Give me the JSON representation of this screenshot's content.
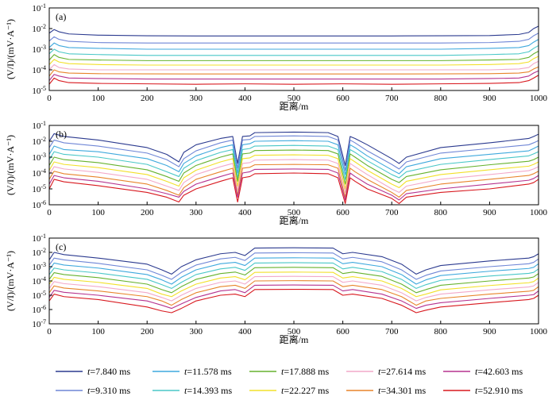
{
  "legend": {
    "entries": [
      "t=7.840 ms",
      "t=9.310 ms",
      "t=11.578 ms",
      "t=14.393 ms",
      "t=17.888 ms",
      "t=22.227 ms",
      "t=27.614 ms",
      "t=34.301 ms",
      "t=42.603 ms",
      "t=52.910 ms"
    ],
    "colors": [
      "#2b3a8f",
      "#6f86d6",
      "#3fa9dd",
      "#49c7c7",
      "#66b22e",
      "#f2e02a",
      "#f2a9c9",
      "#e8842a",
      "#b5338f",
      "#d8181e"
    ]
  },
  "chart_data": [
    {
      "type": "line",
      "panel_label": "(a)",
      "xlabel": "距离/m",
      "ylabel": "(V/I)/(mV·A⁻¹)",
      "xlim": [
        0,
        1000
      ],
      "ylim_exp": [
        -5,
        -1
      ],
      "yscale": "log",
      "x_ticks": [
        "0",
        "100",
        "200",
        "300",
        "400",
        "500",
        "600",
        "700",
        "800",
        "900",
        "1000"
      ],
      "y_ticks": [
        "10-5",
        "10-4",
        "10-3",
        "10-2",
        "10-1"
      ],
      "x": [
        0,
        10,
        20,
        40,
        100,
        200,
        300,
        400,
        500,
        600,
        700,
        800,
        900,
        960,
        980,
        990,
        1000
      ],
      "series": [
        {
          "values": [
            0.006,
            0.009,
            0.007,
            0.0055,
            0.0048,
            0.0045,
            0.0044,
            0.0044,
            0.0044,
            0.0044,
            0.0044,
            0.0045,
            0.0046,
            0.0052,
            0.0065,
            0.01,
            0.013
          ]
        },
        {
          "values": [
            0.0025,
            0.004,
            0.003,
            0.0024,
            0.0021,
            0.002,
            0.002,
            0.002,
            0.002,
            0.002,
            0.002,
            0.002,
            0.0021,
            0.0024,
            0.003,
            0.0045,
            0.006
          ]
        },
        {
          "values": [
            0.0012,
            0.002,
            0.0015,
            0.0012,
            0.0011,
            0.001,
            0.001,
            0.001,
            0.001,
            0.001,
            0.001,
            0.001,
            0.0011,
            0.0012,
            0.0015,
            0.0022,
            0.003
          ]
        },
        {
          "values": [
            0.0006,
            0.001,
            0.00075,
            0.0006,
            0.00055,
            0.0005,
            0.0005,
            0.0005,
            0.0005,
            0.0005,
            0.0005,
            0.0005,
            0.00055,
            0.0006,
            0.00075,
            0.0011,
            0.0015
          ]
        },
        {
          "values": [
            0.0003,
            0.00055,
            0.0004,
            0.00032,
            0.0003,
            0.00028,
            0.00028,
            0.00028,
            0.00028,
            0.00028,
            0.00028,
            0.00028,
            0.0003,
            0.00032,
            0.0004,
            0.0006,
            0.0008
          ]
        },
        {
          "values": [
            0.00018,
            0.00032,
            0.00024,
            0.0002,
            0.00018,
            0.00017,
            0.00017,
            0.00017,
            0.00017,
            0.00017,
            0.00017,
            0.00017,
            0.00018,
            0.0002,
            0.00024,
            0.00035,
            0.00045
          ]
        },
        {
          "values": [
            0.0001,
            0.00018,
            0.00013,
            0.00011,
            0.0001,
            0.0001,
            0.0001,
            0.0001,
            0.0001,
            0.0001,
            0.0001,
            0.0001,
            0.0001,
            0.00011,
            0.00013,
            0.0002,
            0.00026
          ]
        },
        {
          "values": [
            5e-05,
            0.0001,
            8e-05,
            7e-05,
            6.5e-05,
            6.4e-05,
            6.3e-05,
            6.3e-05,
            6.3e-05,
            6.3e-05,
            6.3e-05,
            6.4e-05,
            6.5e-05,
            7e-05,
            8e-05,
            0.00011,
            0.00014
          ]
        },
        {
          "values": [
            3e-05,
            6e-05,
            5e-05,
            4e-05,
            3.8e-05,
            3.6e-05,
            3.6e-05,
            3.6e-05,
            3.6e-05,
            3.6e-05,
            3.6e-05,
            3.6e-05,
            3.8e-05,
            4e-05,
            5e-05,
            7e-05,
            9e-05
          ]
        },
        {
          "values": [
            2e-05,
            4e-05,
            3e-05,
            2.4e-05,
            2.2e-05,
            2.1e-05,
            2e-05,
            2.1e-05,
            2e-05,
            2.1e-05,
            2e-05,
            2.1e-05,
            2.2e-05,
            2.4e-05,
            3e-05,
            4e-05,
            5.5e-05
          ]
        }
      ]
    },
    {
      "type": "line",
      "panel_label": "(b)",
      "xlabel": "距离/m",
      "ylabel": "(V/I)/(mV·A⁻¹)",
      "xlim": [
        0,
        1000
      ],
      "ylim_exp": [
        -6,
        -1
      ],
      "yscale": "log",
      "x_ticks": [
        "0",
        "100",
        "200",
        "300",
        "400",
        "500",
        "600",
        "700",
        "800",
        "900",
        "1000"
      ],
      "y_ticks": [
        "10-6",
        "10-5",
        "10-4",
        "10-3",
        "10-2",
        "10-1"
      ],
      "x": [
        0,
        10,
        30,
        100,
        200,
        240,
        265,
        275,
        300,
        350,
        375,
        385,
        395,
        410,
        420,
        500,
        570,
        590,
        605,
        615,
        625,
        650,
        700,
        715,
        730,
        800,
        900,
        980,
        990,
        1000
      ],
      "series": [
        {
          "values": [
            0.01,
            0.03,
            0.02,
            0.012,
            0.004,
            0.0015,
            0.0005,
            0.002,
            0.006,
            0.015,
            0.02,
            0.0004,
            0.02,
            0.022,
            0.035,
            0.038,
            0.035,
            0.02,
            0.0003,
            0.02,
            0.015,
            0.006,
            0.0008,
            0.0004,
            0.001,
            0.004,
            0.008,
            0.015,
            0.02,
            0.028
          ]
        },
        {
          "values": [
            0.004,
            0.012,
            0.008,
            0.005,
            0.0018,
            0.0007,
            0.00025,
            0.0008,
            0.0025,
            0.008,
            0.012,
            0.0002,
            0.012,
            0.013,
            0.02,
            0.022,
            0.02,
            0.012,
            0.00015,
            0.012,
            0.008,
            0.0025,
            0.00035,
            0.00018,
            0.0005,
            0.0018,
            0.0035,
            0.006,
            0.008,
            0.011
          ]
        },
        {
          "values": [
            0.0015,
            0.005,
            0.003,
            0.0022,
            0.0008,
            0.0003,
            0.00012,
            0.0004,
            0.0012,
            0.004,
            0.006,
            0.0001,
            0.006,
            0.007,
            0.01,
            0.011,
            0.01,
            0.006,
            8e-05,
            0.006,
            0.004,
            0.0012,
            0.00016,
            9e-05,
            0.00025,
            0.0008,
            0.0015,
            0.0025,
            0.0035,
            0.005
          ]
        },
        {
          "values": [
            0.0007,
            0.0022,
            0.0015,
            0.001,
            0.00035,
            0.00012,
            6e-05,
            0.0002,
            0.0006,
            0.002,
            0.003,
            5e-05,
            0.003,
            0.0035,
            0.005,
            0.0055,
            0.005,
            0.003,
            4e-05,
            0.003,
            0.002,
            0.0006,
            8e-05,
            5e-05,
            0.00012,
            0.00035,
            0.0007,
            0.0012,
            0.0016,
            0.0022
          ]
        },
        {
          "values": [
            0.0003,
            0.001,
            0.0007,
            0.00045,
            0.00016,
            6e-05,
            3e-05,
            0.0001,
            0.0003,
            0.001,
            0.0016,
            3e-05,
            0.0016,
            0.0018,
            0.0026,
            0.0028,
            0.0026,
            0.0016,
            2e-05,
            0.0016,
            0.001,
            0.0003,
            4e-05,
            2.5e-05,
            6e-05,
            0.00016,
            0.00033,
            0.00055,
            0.0007,
            0.001
          ]
        },
        {
          "values": [
            0.00015,
            0.0005,
            0.00035,
            0.00022,
            8e-05,
            3e-05,
            1.5e-05,
            5e-05,
            0.00015,
            0.0005,
            0.0008,
            1.5e-05,
            0.0008,
            0.0009,
            0.0013,
            0.0014,
            0.0013,
            0.0008,
            1e-05,
            0.0008,
            0.0005,
            0.00015,
            2e-05,
            1.2e-05,
            3e-05,
            8e-05,
            0.00016,
            0.00027,
            0.00035,
            0.0005
          ]
        },
        {
          "values": [
            8e-05,
            0.00025,
            0.00018,
            0.00011,
            4e-05,
            1.5e-05,
            8e-06,
            2.5e-05,
            8e-05,
            0.00025,
            0.0004,
            8e-06,
            0.0004,
            0.00045,
            0.00065,
            0.0007,
            0.00065,
            0.0004,
            6e-06,
            0.0004,
            0.00025,
            8e-05,
            1e-05,
            6e-06,
            1.5e-05,
            4e-05,
            8e-05,
            0.00014,
            0.00018,
            0.00025
          ]
        },
        {
          "values": [
            4e-05,
            0.00013,
            9e-05,
            5.5e-05,
            2e-05,
            8e-06,
            4e-06,
            1.2e-05,
            4e-05,
            0.00012,
            0.0002,
            4e-06,
            0.0002,
            0.00023,
            0.00033,
            0.00035,
            0.00033,
            0.0002,
            3e-06,
            0.0002,
            0.00012,
            4e-05,
            6e-06,
            3e-06,
            8e-06,
            2e-05,
            4e-05,
            7e-05,
            9e-05,
            0.00013
          ]
        },
        {
          "values": [
            2e-05,
            7e-05,
            5e-05,
            3e-05,
            1e-05,
            5e-06,
            3e-06,
            7e-06,
            2e-05,
            6e-05,
            0.0001,
            3e-06,
            0.0001,
            0.00012,
            0.00017,
            0.00018,
            0.00017,
            0.0001,
            2e-06,
            0.0001,
            6e-05,
            2e-05,
            4e-06,
            2e-06,
            5e-06,
            1e-05,
            2e-05,
            3.5e-05,
            4.5e-05,
            7e-05
          ]
        },
        {
          "values": [
            1e-05,
            4e-05,
            2.8e-05,
            1.6e-05,
            6e-06,
            3e-06,
            1.5e-06,
            4e-06,
            1e-05,
            3e-05,
            5e-05,
            1.5e-06,
            5e-05,
            6e-05,
            9e-05,
            0.0001,
            9e-05,
            5e-05,
            1.2e-06,
            5e-05,
            3e-05,
            1e-05,
            2.5e-06,
            1.2e-06,
            3e-06,
            6e-06,
            1e-05,
            2e-05,
            2.5e-05,
            4e-05
          ]
        }
      ]
    },
    {
      "type": "line",
      "panel_label": "(c)",
      "xlabel": "距离/m",
      "ylabel": "(V/I)/(mV·A⁻¹)",
      "xlim": [
        0,
        1000
      ],
      "ylim_exp": [
        -7,
        -1
      ],
      "yscale": "log",
      "x_ticks": [
        "0",
        "100",
        "200",
        "300",
        "400",
        "500",
        "600",
        "700",
        "800",
        "900",
        "1000"
      ],
      "y_ticks": [
        "10-7",
        "10-6",
        "10-5",
        "10-4",
        "10-3",
        "10-2",
        "10-1"
      ],
      "x": [
        0,
        10,
        30,
        100,
        200,
        230,
        250,
        270,
        300,
        350,
        380,
        400,
        420,
        500,
        580,
        600,
        620,
        680,
        720,
        750,
        770,
        800,
        900,
        980,
        990,
        1000
      ],
      "series": [
        {
          "values": [
            0.003,
            0.01,
            0.007,
            0.004,
            0.0015,
            0.0006,
            0.0003,
            0.001,
            0.003,
            0.008,
            0.01,
            0.006,
            0.02,
            0.021,
            0.02,
            0.008,
            0.01,
            0.005,
            0.0015,
            0.0003,
            0.0006,
            0.0012,
            0.0025,
            0.004,
            0.005,
            0.008
          ]
        },
        {
          "values": [
            0.0013,
            0.004,
            0.003,
            0.0017,
            0.0006,
            0.00025,
            0.00013,
            0.0004,
            0.0013,
            0.0035,
            0.0045,
            0.0027,
            0.009,
            0.0095,
            0.009,
            0.0035,
            0.0045,
            0.0022,
            0.0006,
            0.00013,
            0.00025,
            0.0005,
            0.001,
            0.0016,
            0.002,
            0.0035
          ]
        },
        {
          "values": [
            0.0006,
            0.0018,
            0.0013,
            0.0008,
            0.00028,
            0.00012,
            6e-05,
            0.00018,
            0.0006,
            0.0016,
            0.002,
            0.0012,
            0.004,
            0.0042,
            0.004,
            0.0016,
            0.002,
            0.001,
            0.00028,
            6e-05,
            0.00012,
            0.00024,
            0.00048,
            0.00075,
            0.0009,
            0.0016
          ]
        },
        {
          "values": [
            0.00028,
            0.0008,
            0.0006,
            0.00036,
            0.00013,
            5.5e-05,
            3e-05,
            8e-05,
            0.00028,
            0.0007,
            0.0009,
            0.00055,
            0.0018,
            0.0019,
            0.0018,
            0.0007,
            0.0009,
            0.00045,
            0.00013,
            3e-05,
            5.5e-05,
            0.00011,
            0.00022,
            0.00034,
            0.0004,
            0.0007
          ]
        },
        {
          "values": [
            0.00013,
            0.00038,
            0.00028,
            0.00017,
            6e-05,
            2.5e-05,
            1.5e-05,
            4e-05,
            0.00013,
            0.00033,
            0.00042,
            0.00026,
            0.00085,
            0.0009,
            0.00085,
            0.00033,
            0.00042,
            0.00021,
            6e-05,
            1.5e-05,
            2.5e-05,
            5e-05,
            0.0001,
            0.00016,
            0.00019,
            0.00033
          ]
        },
        {
          "values": [
            6e-05,
            0.00018,
            0.00013,
            8e-05,
            3e-05,
            1.2e-05,
            8e-06,
            2e-05,
            6e-05,
            0.00016,
            0.0002,
            0.00012,
            0.0004,
            0.00042,
            0.0004,
            0.00016,
            0.0002,
            0.0001,
            3e-05,
            8e-06,
            1.2e-05,
            2.4e-05,
            4.8e-05,
            7.5e-05,
            9e-05,
            0.00016
          ]
        },
        {
          "values": [
            3e-05,
            9e-05,
            6.5e-05,
            4e-05,
            1.5e-05,
            7e-06,
            4e-06,
            1e-05,
            3e-05,
            8e-05,
            0.0001,
            6e-05,
            0.0002,
            0.00021,
            0.0002,
            8e-05,
            0.0001,
            5e-05,
            1.5e-05,
            4e-06,
            7e-06,
            1.2e-05,
            2.4e-05,
            3.8e-05,
            4.5e-05,
            8e-05
          ]
        },
        {
          "values": [
            1.5e-05,
            4.5e-05,
            3.2e-05,
            2e-05,
            8e-06,
            4e-06,
            2e-06,
            5e-06,
            1.5e-05,
            4e-05,
            5e-05,
            3e-05,
            0.0001,
            0.000105,
            0.0001,
            4e-05,
            5e-05,
            2.5e-05,
            8e-06,
            2e-06,
            4e-06,
            6e-06,
            1.2e-05,
            1.9e-05,
            2.2e-05,
            4e-05
          ]
        },
        {
          "values": [
            7e-06,
            2.2e-05,
            1.6e-05,
            1e-05,
            4e-06,
            2e-06,
            1.2e-06,
            2.5e-06,
            7e-06,
            2e-05,
            2.5e-05,
            1.5e-05,
            5e-05,
            5.2e-05,
            5e-05,
            2e-05,
            2.5e-05,
            1.2e-05,
            4e-06,
            1.2e-06,
            2e-06,
            3e-06,
            6e-06,
            1e-05,
            1.1e-05,
            2e-05
          ]
        },
        {
          "values": [
            4e-06,
            1.2e-05,
            8e-06,
            5e-06,
            1.5e-06,
            8e-07,
            6e-07,
            1.2e-06,
            4e-06,
            1e-05,
            1.2e-05,
            8e-06,
            2.5e-05,
            2.6e-05,
            2.5e-05,
            1e-05,
            1.2e-05,
            6e-06,
            2e-06,
            6e-07,
            9e-07,
            1.5e-06,
            3e-06,
            5e-06,
            6e-06,
            1e-05
          ]
        }
      ]
    }
  ]
}
